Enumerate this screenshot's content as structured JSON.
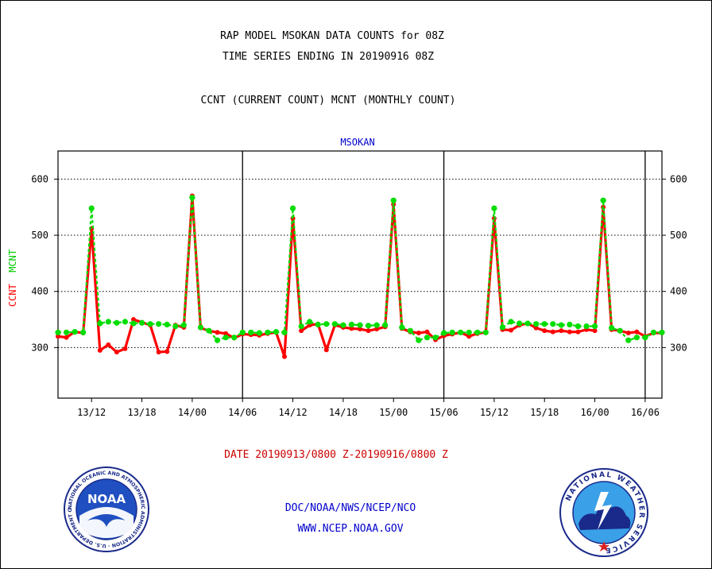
{
  "chart_data": {
    "type": "line",
    "title": "RAP MODEL MSOKAN DATA COUNTS for 08Z",
    "subtitle": "TIME SERIES ENDING IN 20190916 08Z",
    "series_description": "CCNT (CURRENT COUNT) MCNT (MONTHLY COUNT)",
    "plot_label": "MSOKAN",
    "ylabel_parts": [
      "CCNT",
      "MCNT"
    ],
    "xlabel": "DATE 20190913/0800 Z-20190916/0800 Z",
    "x_unit": "hour",
    "xlim": [
      0,
      72
    ],
    "ylim": [
      210,
      650
    ],
    "yticks": [
      300,
      400,
      500,
      600
    ],
    "xticks": [
      {
        "x": 4,
        "label": "13/12"
      },
      {
        "x": 10,
        "label": "13/18"
      },
      {
        "x": 16,
        "label": "14/00"
      },
      {
        "x": 22,
        "label": "14/06"
      },
      {
        "x": 28,
        "label": "14/12"
      },
      {
        "x": 34,
        "label": "14/18"
      },
      {
        "x": 40,
        "label": "15/00"
      },
      {
        "x": 46,
        "label": "15/06"
      },
      {
        "x": 52,
        "label": "15/12"
      },
      {
        "x": 58,
        "label": "15/18"
      },
      {
        "x": 64,
        "label": "16/00"
      },
      {
        "x": 70,
        "label": "16/06"
      }
    ],
    "day_boundaries": [
      22,
      46,
      70
    ],
    "grid": "horizontal dotted",
    "series": [
      {
        "name": "CCNT",
        "color": "#ff0000",
        "values": [
          320,
          318,
          328,
          326,
          512,
          295,
          305,
          292,
          298,
          350,
          345,
          340,
          292,
          293,
          340,
          336,
          570,
          335,
          330,
          327,
          325,
          317,
          324,
          323,
          322,
          325,
          327,
          284,
          530,
          330,
          340,
          342,
          296,
          340,
          336,
          334,
          333,
          330,
          333,
          337,
          555,
          334,
          328,
          326,
          328,
          314,
          321,
          324,
          327,
          320,
          325,
          327,
          530,
          332,
          331,
          340,
          343,
          335,
          330,
          328,
          330,
          328,
          328,
          332,
          330,
          550,
          332,
          330,
          326,
          328,
          320,
          326,
          326
        ]
      },
      {
        "name": "MCNT",
        "color": "#00dd00",
        "values": [
          327,
          327,
          328,
          327,
          548,
          343,
          346,
          344,
          346,
          343,
          344,
          342,
          342,
          341,
          338,
          340,
          567,
          336,
          330,
          313,
          318,
          318,
          327,
          327,
          326,
          327,
          328,
          327,
          548,
          338,
          346,
          341,
          342,
          342,
          340,
          341,
          340,
          339,
          340,
          340,
          562,
          336,
          330,
          313,
          318,
          318,
          326,
          327,
          327,
          327,
          327,
          327,
          548,
          336,
          346,
          343,
          343,
          342,
          342,
          342,
          340,
          341,
          338,
          338,
          338,
          562,
          335,
          330,
          313,
          318,
          318,
          327,
          327
        ]
      }
    ]
  },
  "footer": {
    "credit_line1": "DOC/NOAA/NWS/NCEP/NCO",
    "credit_line2": "WWW.NCEP.NOAA.GOV"
  },
  "logos": {
    "left": {
      "text": "NOAA",
      "ring_text": "NATIONAL OCEANIC AND ATMOSPHERIC ADMINISTRATION · U.S. DEPARTMENT OF COMMERCE ·"
    },
    "right": {
      "ring_text": "NATIONAL WEATHER SERVICE"
    }
  }
}
